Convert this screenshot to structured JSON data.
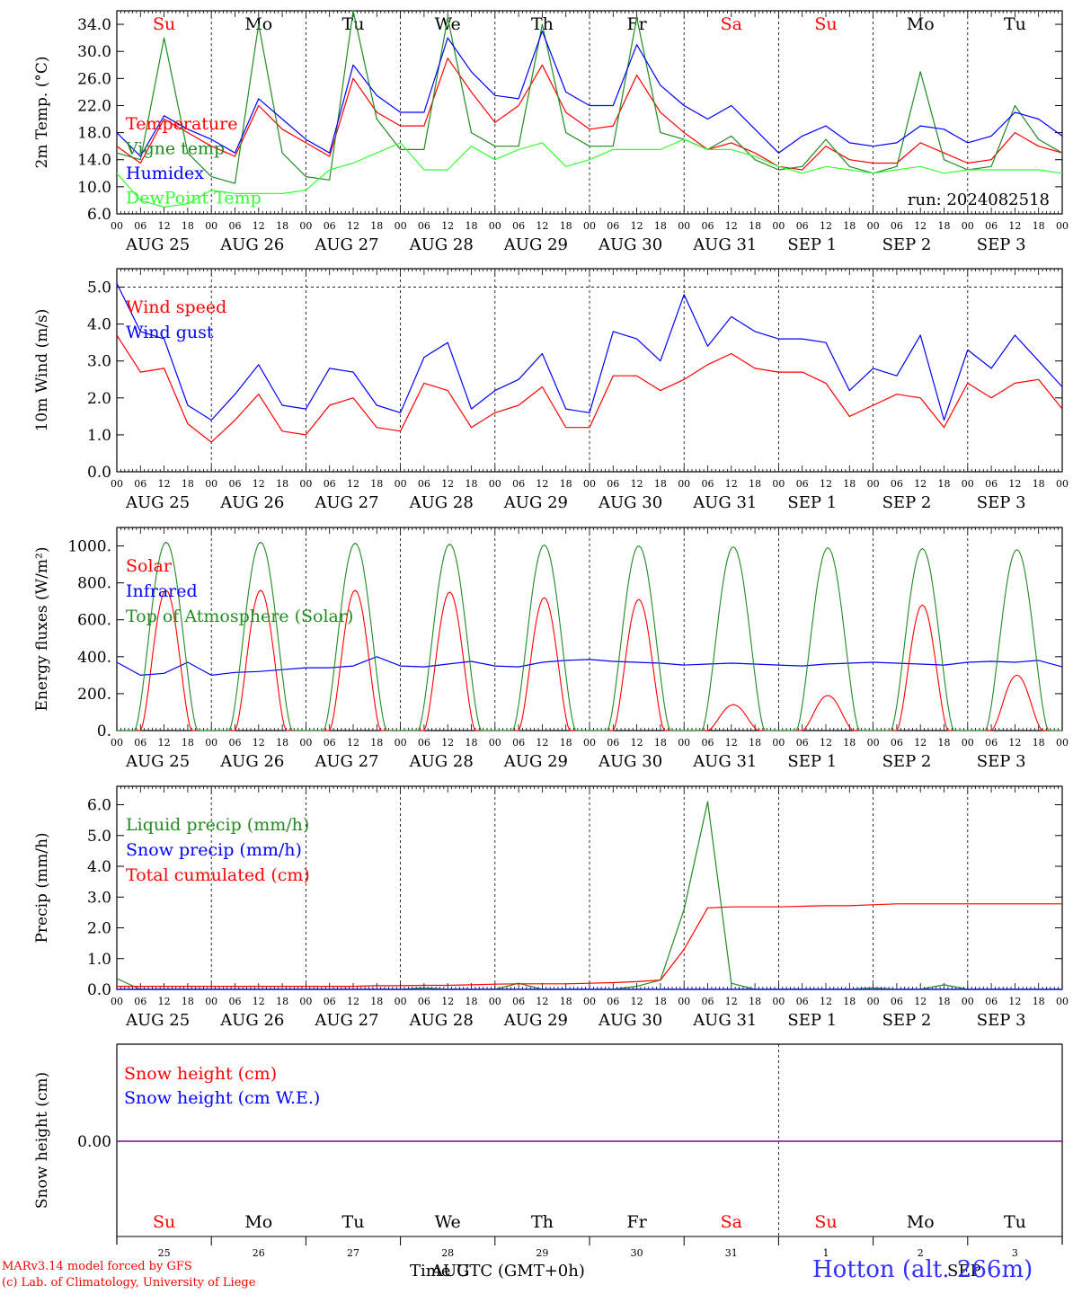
{
  "station": "Hotton (alt. 266m)",
  "model_line": "MARv3.14 model forced by GFS",
  "copyright_line": "(c) Lab. of Climatology, University of Liege",
  "time_axis_label": "Time UTC (GMT+0h)",
  "time_axis_overlap": [
    "AUG",
    "SEP"
  ],
  "colors": {
    "red": "#ff0000",
    "green": "#228b22",
    "blue": "#0000ff",
    "lightgreen": "#33ff33",
    "purple": "#8000a0",
    "axis": "#000000"
  },
  "days": {
    "weekday": [
      "Su",
      "Mo",
      "Tu",
      "We",
      "Th",
      "Fr",
      "Sa",
      "Su",
      "Mo",
      "Tu"
    ],
    "weekend": [
      true,
      false,
      false,
      false,
      false,
      false,
      true,
      true,
      false,
      false
    ],
    "month_label": [
      "AUG 25",
      "AUG 26",
      "AUG 27",
      "AUG 28",
      "AUG 29",
      "AUG 30",
      "AUG 31",
      "SEP  1",
      "SEP  2",
      "SEP  3"
    ],
    "day_number": [
      "25",
      "26",
      "27",
      "28",
      "29",
      "30",
      "31",
      "1",
      "2",
      "3"
    ],
    "hour_ticks": [
      "00",
      "06",
      "12",
      "18"
    ]
  },
  "chart_data": [
    {
      "type": "line",
      "ylabel": "2m Temp. (°C)",
      "ylim": [
        6,
        36
      ],
      "yticks": [
        "6.0",
        "10.0",
        "14.0",
        "18.0",
        "22.0",
        "26.0",
        "30.0",
        "34.0"
      ],
      "annotation": "run: 2024082518",
      "x": "hours from 2024-08-25 00 UTC, every 6 h",
      "series": [
        {
          "name": "Temperature",
          "color": "red",
          "values": [
            16,
            13.5,
            20,
            18,
            16,
            14.5,
            22,
            18.5,
            16.5,
            14.5,
            26,
            21,
            19,
            19,
            29,
            24,
            19.5,
            22,
            28,
            21,
            18.5,
            19,
            26.5,
            21,
            18,
            15.5,
            16.5,
            15,
            13,
            12.5,
            16,
            14,
            13.5,
            13.5,
            16.5,
            15,
            13.5,
            14,
            18,
            16,
            15
          ]
        },
        {
          "name": "Vigne temp",
          "color": "green",
          "values": [
            15,
            14,
            32,
            15,
            11.5,
            10.5,
            34,
            15,
            11.5,
            11,
            36,
            20,
            15.5,
            15.5,
            35,
            18,
            16,
            16,
            34,
            18,
            16,
            16,
            35,
            18,
            17,
            15.5,
            17.5,
            14,
            12.5,
            13,
            17,
            13,
            12,
            13,
            27,
            14,
            12.5,
            13,
            22,
            17,
            15
          ]
        },
        {
          "name": "Humidex",
          "color": "blue",
          "values": [
            18,
            14.5,
            20.5,
            18.5,
            17,
            15,
            23,
            20,
            17,
            15,
            28,
            23.5,
            21,
            21,
            32,
            27,
            23.5,
            23,
            33,
            24,
            22,
            22,
            31,
            25,
            22,
            20,
            22,
            18.5,
            15,
            17.5,
            19,
            16.5,
            16,
            16.5,
            19,
            18.5,
            16.5,
            17.5,
            21,
            20,
            17.5
          ]
        },
        {
          "name": "DewPoint Temp",
          "color": "lightgreen",
          "values": [
            12,
            8,
            7,
            7.5,
            9.5,
            9,
            9,
            9,
            9.5,
            12.5,
            13.5,
            15,
            16.5,
            12.5,
            12.5,
            16,
            14,
            15.5,
            16.5,
            13,
            14,
            15.5,
            15.5,
            15.5,
            17,
            15.5,
            15.5,
            14.5,
            13,
            12,
            13,
            12.5,
            12,
            12.5,
            13,
            12,
            12.5,
            12.5,
            12.5,
            12.5,
            12
          ]
        }
      ]
    },
    {
      "type": "line",
      "ylabel": "10m Wind (m/s)",
      "ylim": [
        0,
        5.5
      ],
      "yticks": [
        "0.0",
        "1.0",
        "2.0",
        "3.0",
        "4.0",
        "5.0"
      ],
      "ref_line": 5.0,
      "x": "hours from 2024-08-25 00 UTC, every 6 h",
      "series": [
        {
          "name": "Wind speed",
          "color": "red",
          "values": [
            3.7,
            2.7,
            2.8,
            1.3,
            0.8,
            1.4,
            2.1,
            1.1,
            1.0,
            1.8,
            2.0,
            1.2,
            1.1,
            2.4,
            2.2,
            1.2,
            1.6,
            1.8,
            2.3,
            1.2,
            1.2,
            2.6,
            2.6,
            2.2,
            2.5,
            2.9,
            3.2,
            2.8,
            2.7,
            2.7,
            2.4,
            1.5,
            1.8,
            2.1,
            2.0,
            1.2,
            2.4,
            2.0,
            2.4,
            2.5,
            1.7
          ]
        },
        {
          "name": "Wind gust",
          "color": "blue",
          "values": [
            5.1,
            3.8,
            3.6,
            1.8,
            1.4,
            2.1,
            2.9,
            1.8,
            1.7,
            2.8,
            2.7,
            1.8,
            1.6,
            3.1,
            3.5,
            1.7,
            2.2,
            2.5,
            3.2,
            1.7,
            1.6,
            3.8,
            3.6,
            3.0,
            4.8,
            3.4,
            4.2,
            3.8,
            3.6,
            3.6,
            3.5,
            2.2,
            2.8,
            2.6,
            3.7,
            1.4,
            3.3,
            2.8,
            3.7,
            3.0,
            2.3
          ]
        }
      ]
    },
    {
      "type": "line",
      "ylabel": "Energy fluxes (W/m²)",
      "ylim": [
        0,
        1100
      ],
      "yticks": [
        "0.",
        "200.",
        "400.",
        "600.",
        "800.",
        "1000."
      ],
      "x": "hours from 2024-08-25 00 UTC, every 1 h",
      "series": [
        {
          "name": "Solar",
          "color": "red",
          "profile": "daily_bell",
          "daily_peak": [
            760,
            760,
            760,
            750,
            720,
            710,
            140,
            190,
            680,
            300
          ]
        },
        {
          "name": "Infrared",
          "color": "blue",
          "values": [
            370,
            300,
            310,
            370,
            300,
            315,
            320,
            330,
            340,
            340,
            350,
            400,
            350,
            345,
            360,
            375,
            350,
            345,
            370,
            380,
            385,
            375,
            370,
            365,
            355,
            360,
            365,
            360,
            355,
            350,
            360,
            365,
            370,
            365,
            360,
            355,
            370,
            375,
            370,
            380,
            345
          ]
        },
        {
          "name": "Top of Atmosphere (Solar)",
          "color": "green",
          "profile": "daily_bell",
          "daily_peak": [
            1020,
            1020,
            1015,
            1010,
            1005,
            1000,
            995,
            990,
            985,
            980
          ]
        }
      ]
    },
    {
      "type": "line",
      "ylabel": "Precip (mm/h)",
      "ylim": [
        0,
        6.6
      ],
      "yticks": [
        "0.0",
        "1.0",
        "2.0",
        "3.0",
        "4.0",
        "5.0",
        "6.0"
      ],
      "x": "hours from 2024-08-25 00 UTC, every 6 h",
      "series": [
        {
          "name": "Liquid precip (mm/h)",
          "color": "green",
          "values": [
            0.35,
            0,
            0,
            0,
            0,
            0,
            0,
            0,
            0,
            0,
            0,
            0,
            0,
            0.05,
            0,
            0,
            0,
            0.2,
            0,
            0,
            0,
            0,
            0.1,
            0.3,
            2.6,
            6.1,
            0.2,
            0,
            0,
            0,
            0,
            0,
            0.05,
            0,
            0,
            0.15,
            0,
            0,
            0,
            0,
            0
          ]
        },
        {
          "name": "Snow precip (mm/h)",
          "color": "blue",
          "values": [
            0,
            0,
            0,
            0,
            0,
            0,
            0,
            0,
            0,
            0,
            0,
            0,
            0,
            0,
            0,
            0,
            0,
            0,
            0,
            0,
            0,
            0,
            0,
            0,
            0,
            0,
            0,
            0,
            0,
            0,
            0,
            0,
            0,
            0,
            0,
            0,
            0,
            0,
            0,
            0,
            0
          ]
        },
        {
          "name": "Total cumulated (cm)",
          "color": "red",
          "values": [
            0.1,
            0.1,
            0.1,
            0.1,
            0.1,
            0.1,
            0.1,
            0.1,
            0.1,
            0.1,
            0.1,
            0.12,
            0.12,
            0.13,
            0.13,
            0.15,
            0.17,
            0.18,
            0.18,
            0.18,
            0.2,
            0.22,
            0.25,
            0.3,
            1.3,
            2.65,
            2.68,
            2.68,
            2.68,
            2.7,
            2.72,
            2.72,
            2.75,
            2.78,
            2.78,
            2.78,
            2.78,
            2.78,
            2.78,
            2.78,
            2.78
          ]
        }
      ]
    },
    {
      "type": "line",
      "ylabel": "Snow height (cm)",
      "yticks": [
        "0.00"
      ],
      "x": "hours from 2024-08-25 00 UTC",
      "series": [
        {
          "name": "Snow height (cm)",
          "color": "red",
          "values": [
            0,
            0
          ]
        },
        {
          "name": "Snow height (cm W.E.)",
          "color": "blue",
          "values": [
            0,
            0
          ]
        }
      ]
    }
  ]
}
